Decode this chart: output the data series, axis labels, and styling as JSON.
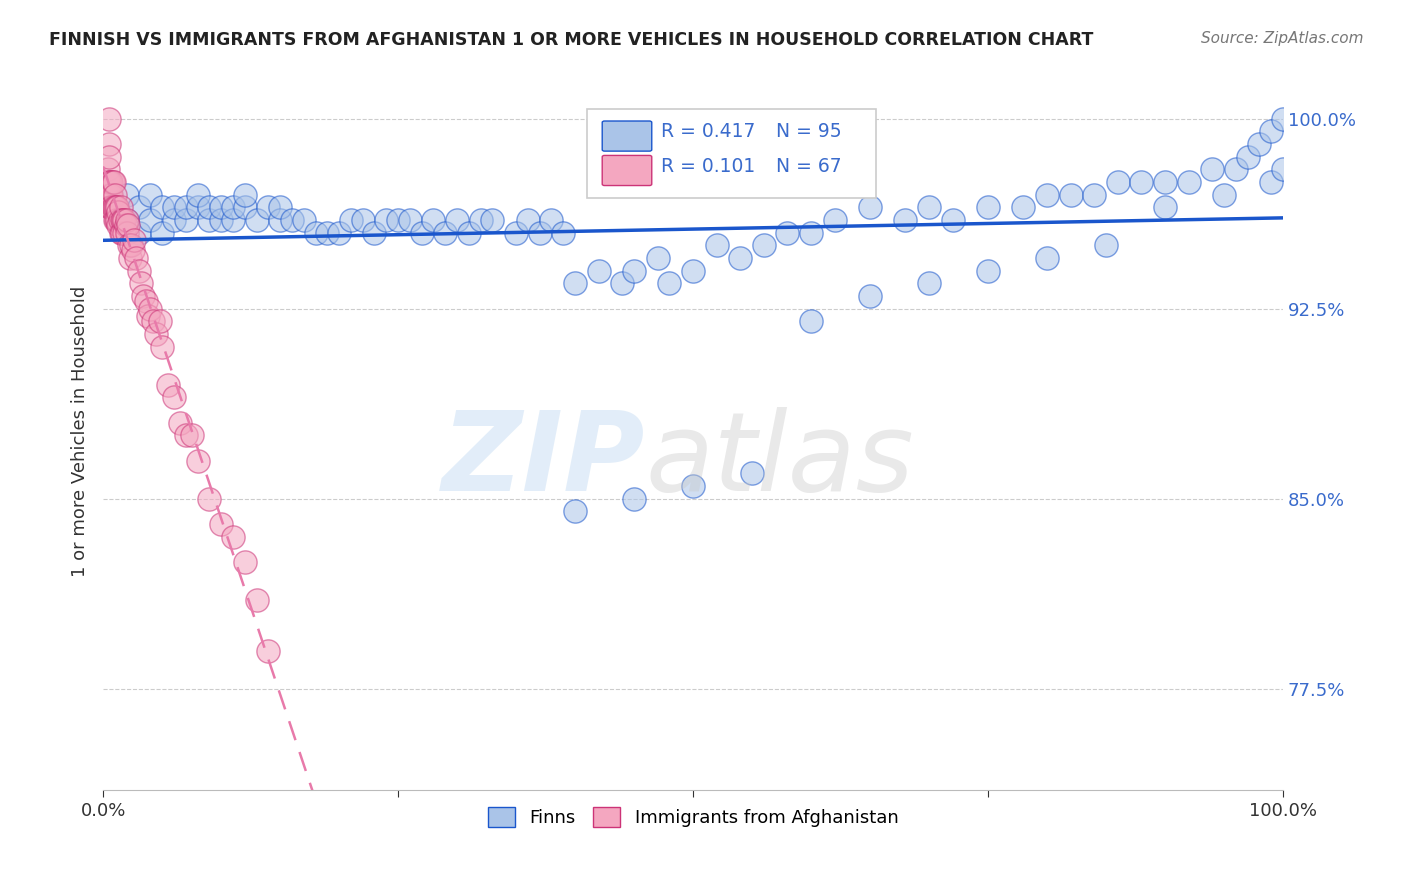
{
  "title": "FINNISH VS IMMIGRANTS FROM AFGHANISTAN 1 OR MORE VEHICLES IN HOUSEHOLD CORRELATION CHART",
  "source": "Source: ZipAtlas.com",
  "ylabel": "1 or more Vehicles in Household",
  "xlabel": "",
  "bg_color": "#ffffff",
  "grid_color": "#cccccc",
  "blue_color": "#aac4e8",
  "pink_color": "#f4a7c0",
  "trend_blue": "#1a56cc",
  "trend_pink": "#e87aaa",
  "legend_R_blue": "R = 0.417",
  "legend_N_blue": "N = 95",
  "legend_R_pink": "R = 0.101",
  "legend_N_pink": "N = 67",
  "legend_label_blue": "Finns",
  "legend_label_pink": "Immigrants from Afghanistan",
  "xlim": [
    0.0,
    1.0
  ],
  "ylim": [
    0.735,
    1.018
  ],
  "yticks": [
    0.775,
    0.85,
    0.925,
    1.0
  ],
  "ytick_labels": [
    "77.5%",
    "85.0%",
    "92.5%",
    "100.0%"
  ],
  "xticks": [
    0.0,
    0.25,
    0.5,
    0.75,
    1.0
  ],
  "xtick_labels": [
    "0.0%",
    "",
    "",
    "",
    "100.0%"
  ],
  "finns_x": [
    0.02,
    0.02,
    0.03,
    0.03,
    0.04,
    0.04,
    0.05,
    0.05,
    0.06,
    0.06,
    0.07,
    0.07,
    0.08,
    0.08,
    0.09,
    0.09,
    0.1,
    0.1,
    0.11,
    0.11,
    0.12,
    0.12,
    0.13,
    0.14,
    0.15,
    0.15,
    0.16,
    0.17,
    0.18,
    0.19,
    0.2,
    0.21,
    0.22,
    0.23,
    0.24,
    0.25,
    0.26,
    0.27,
    0.28,
    0.29,
    0.3,
    0.31,
    0.32,
    0.33,
    0.35,
    0.36,
    0.37,
    0.38,
    0.39,
    0.4,
    0.42,
    0.44,
    0.45,
    0.47,
    0.48,
    0.5,
    0.52,
    0.54,
    0.56,
    0.58,
    0.6,
    0.62,
    0.65,
    0.68,
    0.7,
    0.72,
    0.75,
    0.78,
    0.8,
    0.82,
    0.84,
    0.86,
    0.88,
    0.9,
    0.92,
    0.94,
    0.96,
    0.97,
    0.98,
    0.99,
    1.0,
    0.4,
    0.45,
    0.5,
    0.55,
    0.6,
    0.65,
    0.7,
    0.75,
    0.8,
    0.85,
    0.9,
    0.95,
    0.99,
    1.0
  ],
  "finns_y": [
    0.96,
    0.97,
    0.955,
    0.965,
    0.96,
    0.97,
    0.955,
    0.965,
    0.96,
    0.965,
    0.96,
    0.965,
    0.965,
    0.97,
    0.96,
    0.965,
    0.96,
    0.965,
    0.96,
    0.965,
    0.965,
    0.97,
    0.96,
    0.965,
    0.96,
    0.965,
    0.96,
    0.96,
    0.955,
    0.955,
    0.955,
    0.96,
    0.96,
    0.955,
    0.96,
    0.96,
    0.96,
    0.955,
    0.96,
    0.955,
    0.96,
    0.955,
    0.96,
    0.96,
    0.955,
    0.96,
    0.955,
    0.96,
    0.955,
    0.935,
    0.94,
    0.935,
    0.94,
    0.945,
    0.935,
    0.94,
    0.95,
    0.945,
    0.95,
    0.955,
    0.955,
    0.96,
    0.965,
    0.96,
    0.965,
    0.96,
    0.965,
    0.965,
    0.97,
    0.97,
    0.97,
    0.975,
    0.975,
    0.975,
    0.975,
    0.98,
    0.98,
    0.985,
    0.99,
    0.995,
    1.0,
    0.845,
    0.85,
    0.855,
    0.86,
    0.92,
    0.93,
    0.935,
    0.94,
    0.945,
    0.95,
    0.965,
    0.97,
    0.975,
    0.98
  ],
  "afghan_x": [
    0.004,
    0.004,
    0.004,
    0.005,
    0.005,
    0.005,
    0.005,
    0.005,
    0.006,
    0.006,
    0.006,
    0.007,
    0.007,
    0.007,
    0.008,
    0.008,
    0.009,
    0.009,
    0.01,
    0.01,
    0.01,
    0.011,
    0.011,
    0.012,
    0.012,
    0.013,
    0.013,
    0.014,
    0.015,
    0.015,
    0.016,
    0.016,
    0.017,
    0.018,
    0.018,
    0.019,
    0.02,
    0.02,
    0.021,
    0.022,
    0.023,
    0.024,
    0.025,
    0.026,
    0.028,
    0.03,
    0.032,
    0.034,
    0.036,
    0.038,
    0.04,
    0.042,
    0.045,
    0.048,
    0.05,
    0.055,
    0.06,
    0.065,
    0.07,
    0.075,
    0.08,
    0.09,
    0.1,
    0.11,
    0.12,
    0.13,
    0.14
  ],
  "afghan_y": [
    0.975,
    0.97,
    0.98,
    1.0,
    0.99,
    0.985,
    0.975,
    0.965,
    0.975,
    0.97,
    0.965,
    0.975,
    0.97,
    0.965,
    0.975,
    0.965,
    0.975,
    0.965,
    0.97,
    0.965,
    0.96,
    0.965,
    0.96,
    0.965,
    0.96,
    0.963,
    0.958,
    0.96,
    0.965,
    0.955,
    0.96,
    0.955,
    0.96,
    0.955,
    0.96,
    0.958,
    0.955,
    0.96,
    0.958,
    0.95,
    0.945,
    0.95,
    0.948,
    0.952,
    0.945,
    0.94,
    0.935,
    0.93,
    0.928,
    0.922,
    0.925,
    0.92,
    0.915,
    0.92,
    0.91,
    0.895,
    0.89,
    0.88,
    0.875,
    0.875,
    0.865,
    0.85,
    0.84,
    0.835,
    0.825,
    0.81,
    0.79
  ]
}
